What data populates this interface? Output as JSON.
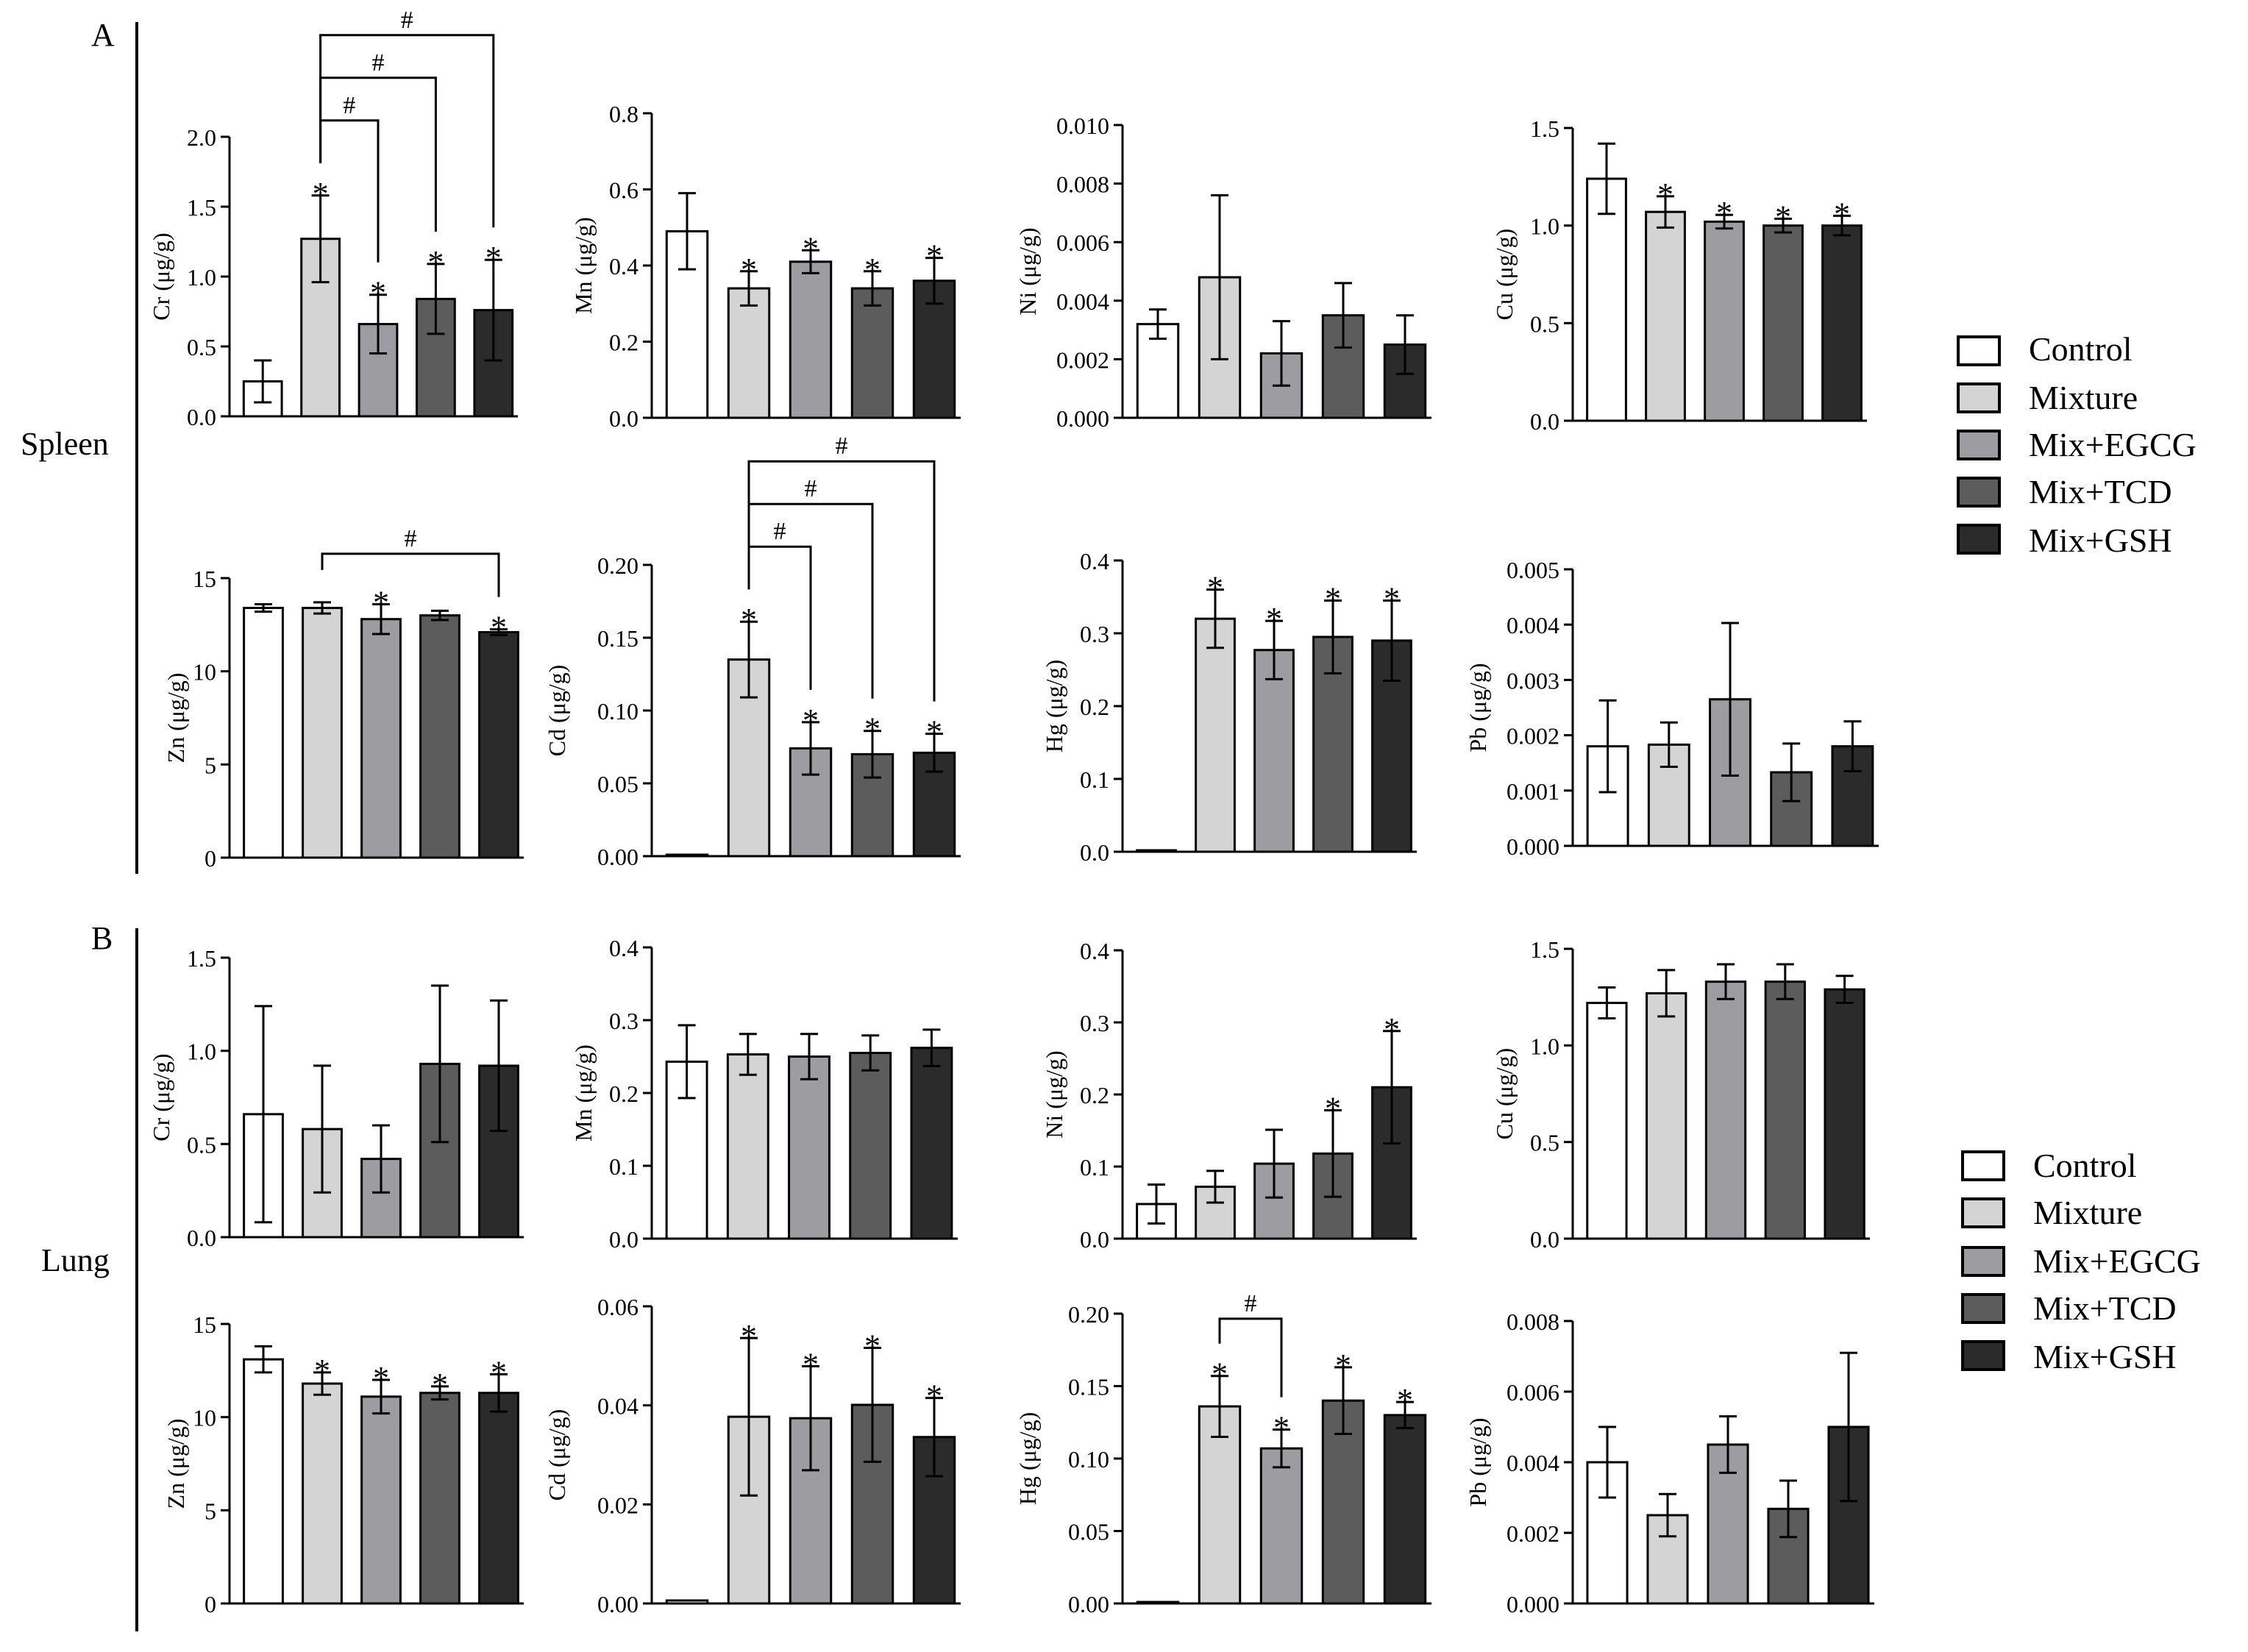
{
  "sections": [
    {
      "panel_label": "A",
      "tissue": "Spleen"
    },
    {
      "panel_label": "B",
      "tissue": "Lung"
    }
  ],
  "legend": [
    {
      "label": "Control",
      "color": "#ffffff"
    },
    {
      "label": "Mixture",
      "color": "#d4d4d4"
    },
    {
      "label": "Mix+EGCG",
      "color": "#9c9ca1"
    },
    {
      "label": "Mix+TCD",
      "color": "#5c5c5c"
    },
    {
      "label": "Mix+GSH",
      "color": "#2b2b2b"
    }
  ],
  "significance_marker": "*",
  "hash_marker": "#",
  "chart_data": [
    {
      "type": "bar",
      "tissue": "Spleen",
      "ylabel": "Cr (μg/g)",
      "ylim": [
        0,
        2.0
      ],
      "ticks": [
        "0.0",
        "0.5",
        "1.0",
        "1.5",
        "2.0"
      ],
      "categories": [
        "Control",
        "Mixture",
        "Mix+EGCG",
        "Mix+TCD",
        "Mix+GSH"
      ],
      "values": [
        0.25,
        1.27,
        0.66,
        0.84,
        0.76
      ],
      "errors": [
        0.15,
        0.31,
        0.21,
        0.25,
        0.36
      ],
      "stars": [
        false,
        true,
        true,
        true,
        true
      ],
      "brackets": [
        [
          1,
          2
        ],
        [
          1,
          3
        ],
        [
          1,
          4
        ]
      ]
    },
    {
      "type": "bar",
      "tissue": "Spleen",
      "ylabel": "Mn (μg/g)",
      "ylim": [
        0,
        0.8
      ],
      "ticks": [
        "0.0",
        "0.2",
        "0.4",
        "0.6",
        "0.8"
      ],
      "categories": [
        "Control",
        "Mixture",
        "Mix+EGCG",
        "Mix+TCD",
        "Mix+GSH"
      ],
      "values": [
        0.49,
        0.34,
        0.41,
        0.34,
        0.36
      ],
      "errors": [
        0.1,
        0.045,
        0.03,
        0.045,
        0.06
      ],
      "stars": [
        false,
        true,
        true,
        true,
        true
      ],
      "brackets": []
    },
    {
      "type": "bar",
      "tissue": "Spleen",
      "ylabel": "Ni (μg/g)",
      "ylim": [
        0,
        0.01
      ],
      "ticks": [
        "0.000",
        "0.002",
        "0.004",
        "0.006",
        "0.008",
        "0.010"
      ],
      "categories": [
        "Control",
        "Mixture",
        "Mix+EGCG",
        "Mix+TCD",
        "Mix+GSH"
      ],
      "values": [
        0.0032,
        0.0048,
        0.0022,
        0.0035,
        0.0025
      ],
      "errors": [
        0.0005,
        0.0028,
        0.0011,
        0.0011,
        0.001
      ],
      "stars": [
        false,
        false,
        false,
        false,
        false
      ],
      "brackets": []
    },
    {
      "type": "bar",
      "tissue": "Spleen",
      "ylabel": "Cu (μg/g)",
      "ylim": [
        0,
        1.5
      ],
      "ticks": [
        "0.0",
        "0.5",
        "1.0",
        "1.5"
      ],
      "categories": [
        "Control",
        "Mixture",
        "Mix+EGCG",
        "Mix+TCD",
        "Mix+GSH"
      ],
      "values": [
        1.24,
        1.07,
        1.02,
        1.0,
        1.0
      ],
      "errors": [
        0.18,
        0.08,
        0.035,
        0.035,
        0.05
      ],
      "stars": [
        false,
        true,
        true,
        true,
        true
      ],
      "brackets": []
    },
    {
      "type": "bar",
      "tissue": "Spleen",
      "ylabel": "Zn (μg/g)",
      "ylim": [
        0,
        15
      ],
      "ticks": [
        "0",
        "5",
        "10",
        "15"
      ],
      "categories": [
        "Control",
        "Mixture",
        "Mix+EGCG",
        "Mix+TCD",
        "Mix+GSH"
      ],
      "values": [
        13.4,
        13.4,
        12.8,
        13.0,
        12.1
      ],
      "errors": [
        0.2,
        0.3,
        0.8,
        0.25,
        0.15
      ],
      "stars": [
        false,
        false,
        true,
        false,
        true
      ],
      "brackets": [
        [
          1,
          4
        ]
      ]
    },
    {
      "type": "bar",
      "tissue": "Spleen",
      "ylabel": "Cd (μg/g)",
      "ylim": [
        0,
        0.2
      ],
      "ticks": [
        "0.00",
        "0.05",
        "0.10",
        "0.15",
        "0.20"
      ],
      "categories": [
        "Control",
        "Mixture",
        "Mix+EGCG",
        "Mix+TCD",
        "Mix+GSH"
      ],
      "values": [
        0.001,
        0.135,
        0.074,
        0.07,
        0.071
      ],
      "errors": [
        0,
        0.026,
        0.018,
        0.016,
        0.013
      ],
      "stars": [
        false,
        true,
        true,
        true,
        true
      ],
      "brackets": [
        [
          1,
          2
        ],
        [
          1,
          3
        ],
        [
          1,
          4
        ]
      ]
    },
    {
      "type": "bar",
      "tissue": "Spleen",
      "ylabel": "Hg (μg/g)",
      "ylim": [
        0,
        0.4
      ],
      "ticks": [
        "0.0",
        "0.1",
        "0.2",
        "0.3",
        "0.4"
      ],
      "categories": [
        "Control",
        "Mixture",
        "Mix+EGCG",
        "Mix+TCD",
        "Mix+GSH"
      ],
      "values": [
        0.002,
        0.32,
        0.277,
        0.295,
        0.29
      ],
      "errors": [
        0,
        0.04,
        0.04,
        0.05,
        0.055
      ],
      "stars": [
        false,
        true,
        true,
        true,
        true
      ],
      "brackets": []
    },
    {
      "type": "bar",
      "tissue": "Spleen",
      "ylabel": "Pb (μg/g)",
      "ylim": [
        0,
        0.005
      ],
      "ticks": [
        "0.000",
        "0.001",
        "0.002",
        "0.003",
        "0.004",
        "0.005"
      ],
      "categories": [
        "Control",
        "Mixture",
        "Mix+EGCG",
        "Mix+TCD",
        "Mix+GSH"
      ],
      "values": [
        0.0018,
        0.00183,
        0.00265,
        0.00133,
        0.0018
      ],
      "errors": [
        0.00083,
        0.0004,
        0.00138,
        0.00052,
        0.00045
      ],
      "stars": [
        false,
        false,
        false,
        false,
        false
      ],
      "brackets": []
    },
    {
      "type": "bar",
      "tissue": "Lung",
      "ylabel": "Cr (μg/g)",
      "ylim": [
        0,
        1.5
      ],
      "ticks": [
        "0.0",
        "0.5",
        "1.0",
        "1.5"
      ],
      "categories": [
        "Control",
        "Mixture",
        "Mix+EGCG",
        "Mix+TCD",
        "Mix+GSH"
      ],
      "values": [
        0.66,
        0.58,
        0.42,
        0.93,
        0.92
      ],
      "errors": [
        0.58,
        0.34,
        0.18,
        0.42,
        0.35
      ],
      "stars": [
        false,
        false,
        false,
        false,
        false
      ],
      "brackets": []
    },
    {
      "type": "bar",
      "tissue": "Lung",
      "ylabel": "Mn (μg/g)",
      "ylim": [
        0,
        0.4
      ],
      "ticks": [
        "0.0",
        "0.1",
        "0.2",
        "0.3",
        "0.4"
      ],
      "categories": [
        "Control",
        "Mixture",
        "Mix+EGCG",
        "Mix+TCD",
        "Mix+GSH"
      ],
      "values": [
        0.243,
        0.253,
        0.25,
        0.255,
        0.262
      ],
      "errors": [
        0.05,
        0.028,
        0.031,
        0.024,
        0.025
      ],
      "stars": [
        false,
        false,
        false,
        false,
        false
      ],
      "brackets": []
    },
    {
      "type": "bar",
      "tissue": "Lung",
      "ylabel": "Ni (μg/g)",
      "ylim": [
        0,
        0.4
      ],
      "ticks": [
        "0.0",
        "0.1",
        "0.2",
        "0.3",
        "0.4"
      ],
      "categories": [
        "Control",
        "Mixture",
        "Mix+EGCG",
        "Mix+TCD",
        "Mix+GSH"
      ],
      "values": [
        0.048,
        0.072,
        0.104,
        0.118,
        0.21
      ],
      "errors": [
        0.027,
        0.022,
        0.047,
        0.06,
        0.078
      ],
      "stars": [
        false,
        false,
        false,
        true,
        true
      ],
      "brackets": []
    },
    {
      "type": "bar",
      "tissue": "Lung",
      "ylabel": "Cu (μg/g)",
      "ylim": [
        0,
        1.5
      ],
      "ticks": [
        "0.0",
        "0.5",
        "1.0",
        "1.5"
      ],
      "categories": [
        "Control",
        "Mixture",
        "Mix+EGCG",
        "Mix+TCD",
        "Mix+GSH"
      ],
      "values": [
        1.22,
        1.27,
        1.33,
        1.33,
        1.29
      ],
      "errors": [
        0.08,
        0.12,
        0.09,
        0.09,
        0.07
      ],
      "stars": [
        false,
        false,
        false,
        false,
        false
      ],
      "brackets": []
    },
    {
      "type": "bar",
      "tissue": "Lung",
      "ylabel": "Zn (μg/g)",
      "ylim": [
        0,
        15
      ],
      "ticks": [
        "0",
        "5",
        "10",
        "15"
      ],
      "categories": [
        "Control",
        "Mixture",
        "Mix+EGCG",
        "Mix+TCD",
        "Mix+GSH"
      ],
      "values": [
        13.1,
        11.8,
        11.1,
        11.3,
        11.3
      ],
      "errors": [
        0.7,
        0.6,
        0.9,
        0.35,
        1.0
      ],
      "stars": [
        false,
        true,
        true,
        true,
        true
      ],
      "brackets": []
    },
    {
      "type": "bar",
      "tissue": "Lung",
      "ylabel": "Cd (μg/g)",
      "ylim": [
        0,
        0.06
      ],
      "ticks": [
        "0.00",
        "0.02",
        "0.04",
        "0.06"
      ],
      "categories": [
        "Control",
        "Mixture",
        "Mix+EGCG",
        "Mix+TCD",
        "Mix+GSH"
      ],
      "values": [
        0.0006,
        0.0377,
        0.0374,
        0.0401,
        0.0336
      ],
      "errors": [
        0,
        0.0159,
        0.0105,
        0.0115,
        0.0079
      ],
      "stars": [
        false,
        true,
        true,
        true,
        true
      ],
      "brackets": []
    },
    {
      "type": "bar",
      "tissue": "Lung",
      "ylabel": "Hg (μg/g)",
      "ylim": [
        0,
        0.2
      ],
      "ticks": [
        "0.00",
        "0.05",
        "0.10",
        "0.15",
        "0.20"
      ],
      "categories": [
        "Control",
        "Mixture",
        "Mix+EGCG",
        "Mix+TCD",
        "Mix+GSH"
      ],
      "values": [
        0.001,
        0.136,
        0.107,
        0.14,
        0.13
      ],
      "errors": [
        0,
        0.021,
        0.013,
        0.023,
        0.009
      ],
      "stars": [
        false,
        true,
        true,
        true,
        true
      ],
      "brackets": [
        [
          1,
          2
        ]
      ]
    },
    {
      "type": "bar",
      "tissue": "Lung",
      "ylabel": "Pb (μg/g)",
      "ylim": [
        0,
        0.008
      ],
      "ticks": [
        "0.000",
        "0.002",
        "0.004",
        "0.006",
        "0.008"
      ],
      "categories": [
        "Control",
        "Mixture",
        "Mix+EGCG",
        "Mix+TCD",
        "Mix+GSH"
      ],
      "values": [
        0.004,
        0.0025,
        0.0045,
        0.00268,
        0.005
      ],
      "errors": [
        0.001,
        0.0006,
        0.0008,
        0.0008,
        0.0021
      ],
      "stars": [
        false,
        false,
        false,
        false,
        false
      ],
      "brackets": []
    }
  ]
}
